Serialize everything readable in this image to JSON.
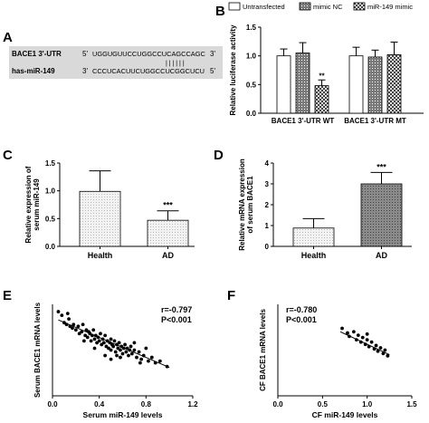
{
  "panel_letters": {
    "A": "A",
    "B": "B",
    "C": "C",
    "D": "D",
    "E": "E",
    "F": "F"
  },
  "colors": {
    "bar_fill": "#dcdcdc",
    "grid_box": "#d9d9d9",
    "ink": "#000000"
  },
  "panel_a": {
    "row1_label": "BACE1 3'-UTR",
    "row1_prefix": "5'",
    "row1_seq": "UGGUGUUCCUGGCCUCAGCCAGC",
    "row1_suffix": "3'",
    "row2_label": "has-miR-149",
    "row2_prefix": "3'",
    "row2_seq": "CCCUCACUUCUGGCCUCGGCUCU",
    "row2_suffix": "5'",
    "pairing": "| | | | | |"
  },
  "chart_data": [
    {
      "id": "B",
      "type": "bar",
      "title": "",
      "ylabel": "Relative luciferase activity",
      "xlabel": "",
      "ylim": [
        0,
        1.5
      ],
      "yticks": [
        0.0,
        0.5,
        1.0,
        1.5
      ],
      "categories": [
        "BACE1 3'-UTR WT",
        "BACE1 3'-UTR MT"
      ],
      "series": [
        {
          "name": "Untransfected",
          "values": [
            1.0,
            1.0
          ],
          "errors": [
            0.12,
            0.15
          ],
          "pattern": "plain"
        },
        {
          "name": "mimic NC",
          "values": [
            1.05,
            0.98
          ],
          "errors": [
            0.18,
            0.12
          ],
          "pattern": "dense"
        },
        {
          "name": "miR-149 mimic",
          "values": [
            0.48,
            1.02
          ],
          "errors": [
            0.1,
            0.22
          ],
          "pattern": "check"
        }
      ],
      "annotations": [
        "**"
      ],
      "legend": "top"
    },
    {
      "id": "C",
      "type": "bar",
      "title": "",
      "ylabel": "Relative expression of serum miR-149",
      "xlabel": "",
      "ylim": [
        0,
        1.5
      ],
      "yticks": [
        0.0,
        0.5,
        1.0,
        1.5
      ],
      "categories": [
        "Health",
        "AD"
      ],
      "values": [
        0.99,
        0.47
      ],
      "errors": [
        0.37,
        0.17
      ],
      "annotations": [
        "***"
      ]
    },
    {
      "id": "D",
      "type": "bar",
      "title": "",
      "ylabel": "Relative mRNA expression of serum BACE1",
      "xlabel": "",
      "ylim": [
        0,
        4
      ],
      "yticks": [
        0,
        1,
        2,
        3,
        4
      ],
      "categories": [
        "Health",
        "AD"
      ],
      "values": [
        0.88,
        3.0
      ],
      "errors": [
        0.45,
        0.55
      ],
      "annotations": [
        "***"
      ]
    },
    {
      "id": "E",
      "type": "scatter",
      "title": "",
      "xlabel": "Serum miR-149 levels",
      "ylabel": "Serum BACE1 mRNA levels",
      "xlim": [
        0,
        1.2
      ],
      "xticks": [
        0.0,
        0.4,
        0.8,
        1.2
      ],
      "ylim": [
        0,
        5
      ],
      "stats": [
        "r=-0.797",
        "P<0.001"
      ],
      "fit": [
        [
          0.05,
          4.15
        ],
        [
          1.0,
          1.55
        ]
      ],
      "points": [
        [
          0.05,
          4.6
        ],
        [
          0.08,
          4.4
        ],
        [
          0.1,
          4.0
        ],
        [
          0.12,
          3.9
        ],
        [
          0.14,
          4.2
        ],
        [
          0.15,
          3.8
        ],
        [
          0.17,
          3.7
        ],
        [
          0.18,
          3.9
        ],
        [
          0.2,
          3.6
        ],
        [
          0.22,
          3.8
        ],
        [
          0.23,
          3.4
        ],
        [
          0.25,
          3.5
        ],
        [
          0.26,
          3.9
        ],
        [
          0.28,
          3.3
        ],
        [
          0.29,
          3.6
        ],
        [
          0.3,
          3.2
        ],
        [
          0.31,
          3.5
        ],
        [
          0.32,
          3.4
        ],
        [
          0.33,
          3.0
        ],
        [
          0.34,
          3.3
        ],
        [
          0.35,
          3.6
        ],
        [
          0.36,
          3.1
        ],
        [
          0.37,
          3.3
        ],
        [
          0.38,
          2.9
        ],
        [
          0.39,
          3.2
        ],
        [
          0.4,
          3.0
        ],
        [
          0.41,
          3.4
        ],
        [
          0.42,
          2.8
        ],
        [
          0.43,
          3.1
        ],
        [
          0.44,
          2.9
        ],
        [
          0.45,
          3.3
        ],
        [
          0.46,
          2.7
        ],
        [
          0.47,
          3.0
        ],
        [
          0.48,
          2.6
        ],
        [
          0.49,
          2.9
        ],
        [
          0.5,
          3.1
        ],
        [
          0.5,
          2.5
        ],
        [
          0.51,
          2.8
        ],
        [
          0.52,
          2.7
        ],
        [
          0.53,
          3.0
        ],
        [
          0.54,
          2.4
        ],
        [
          0.55,
          2.8
        ],
        [
          0.56,
          2.6
        ],
        [
          0.57,
          2.9
        ],
        [
          0.58,
          2.5
        ],
        [
          0.59,
          2.7
        ],
        [
          0.6,
          2.3
        ],
        [
          0.61,
          2.6
        ],
        [
          0.62,
          2.8
        ],
        [
          0.63,
          2.4
        ],
        [
          0.64,
          2.6
        ],
        [
          0.65,
          2.2
        ],
        [
          0.66,
          2.5
        ],
        [
          0.67,
          2.7
        ],
        [
          0.68,
          2.3
        ],
        [
          0.7,
          2.5
        ],
        [
          0.72,
          2.1
        ],
        [
          0.74,
          2.4
        ],
        [
          0.76,
          2.0
        ],
        [
          0.78,
          2.2
        ],
        [
          0.8,
          2.6
        ],
        [
          0.82,
          1.9
        ],
        [
          0.85,
          2.1
        ],
        [
          0.88,
          1.8
        ],
        [
          0.92,
          1.9
        ],
        [
          0.98,
          1.6
        ],
        [
          0.13,
          4.5
        ],
        [
          0.27,
          3.0
        ],
        [
          0.36,
          2.6
        ],
        [
          0.45,
          2.2
        ],
        [
          0.55,
          2.2
        ],
        [
          0.7,
          2.9
        ],
        [
          0.75,
          1.8
        ],
        [
          0.5,
          2.0
        ],
        [
          0.58,
          2.1
        ]
      ]
    },
    {
      "id": "F",
      "type": "scatter",
      "title": "",
      "xlabel": "CF miR-149 levels",
      "ylabel": "CF BACE1 mRNA levels",
      "xlim": [
        0,
        1.5
      ],
      "xticks": [
        0.0,
        0.5,
        1.0,
        1.5
      ],
      "ylim": [
        0,
        8
      ],
      "stats": [
        "r=-0.780",
        "P<0.001"
      ],
      "fit": [
        [
          0.7,
          5.6
        ],
        [
          1.25,
          3.6
        ]
      ],
      "points": [
        [
          0.72,
          5.9
        ],
        [
          0.78,
          5.5
        ],
        [
          0.8,
          5.2
        ],
        [
          0.85,
          5.6
        ],
        [
          0.88,
          4.9
        ],
        [
          0.9,
          5.3
        ],
        [
          0.93,
          4.7
        ],
        [
          0.95,
          5.1
        ],
        [
          0.98,
          4.5
        ],
        [
          1.0,
          4.9
        ],
        [
          1.02,
          4.3
        ],
        [
          1.05,
          4.7
        ],
        [
          1.08,
          4.1
        ],
        [
          1.1,
          4.4
        ],
        [
          1.12,
          3.9
        ],
        [
          1.15,
          4.2
        ],
        [
          1.18,
          3.7
        ],
        [
          1.2,
          4.0
        ],
        [
          1.23,
          3.5
        ],
        [
          1.0,
          5.4
        ]
      ]
    }
  ]
}
